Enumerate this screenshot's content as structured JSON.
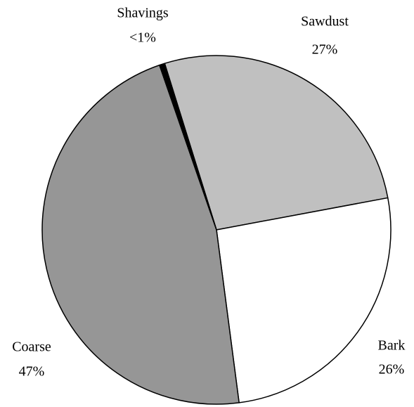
{
  "chart_data": {
    "type": "pie",
    "categories": [
      "Sawdust",
      "Bark",
      "Coarse",
      "Shavings"
    ],
    "values": [
      27,
      26,
      47,
      0.5
    ],
    "value_labels": [
      "27%",
      "26%",
      "47%",
      "<1%"
    ],
    "colors": [
      "#c0c0c0",
      "#ffffff",
      "#969696",
      "#000000"
    ]
  }
}
